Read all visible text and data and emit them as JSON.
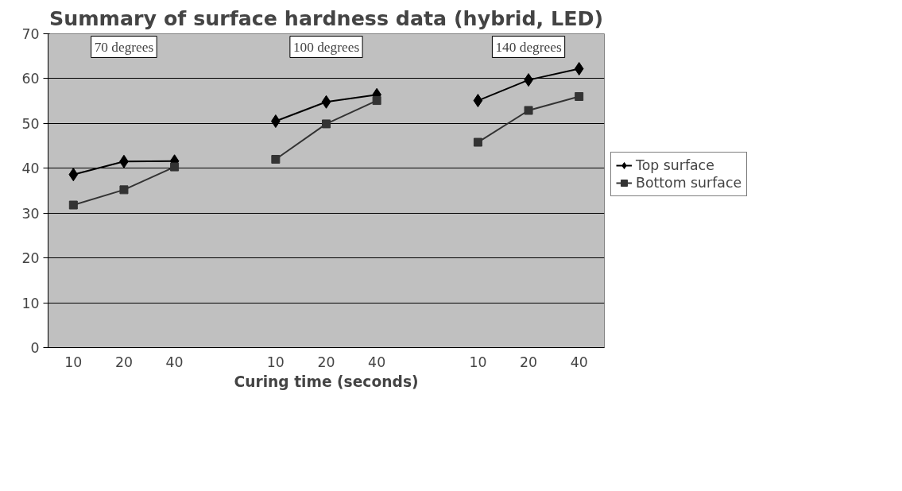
{
  "chart_data": {
    "type": "line",
    "title": "Summary of surface hardness data (hybrid, LED)",
    "xlabel": "Curing time (seconds)",
    "categories": [
      "10",
      "20",
      "40",
      null,
      "10",
      "20",
      "40",
      null,
      "10",
      "20",
      "40"
    ],
    "series": [
      {
        "name": "Top surface",
        "color": "#000000",
        "marker": "diamond",
        "values": [
          38.6,
          41.5,
          41.6,
          null,
          50.5,
          54.8,
          56.4,
          null,
          55.1,
          59.7,
          62.2
        ]
      },
      {
        "name": "Bottom surface",
        "color": "#333333",
        "marker": "square",
        "values": [
          31.8,
          35.2,
          40.3,
          null,
          42.0,
          49.9,
          55.1,
          null,
          45.8,
          52.9,
          56.0
        ]
      }
    ],
    "annotations": [
      "70 degrees",
      "100 degrees",
      "140 degrees"
    ],
    "ylim": [
      0,
      70
    ],
    "yticks": [
      0,
      10,
      20,
      30,
      40,
      50,
      60,
      70
    ],
    "grid": "y",
    "legend": "right"
  }
}
